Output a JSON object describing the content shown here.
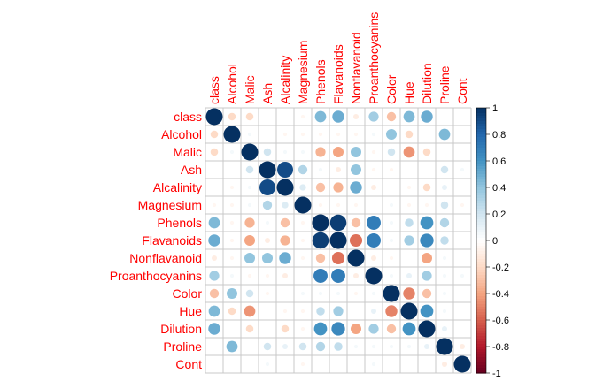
{
  "chart_data": {
    "type": "heatmap",
    "variables": [
      "class",
      "Alcohol",
      "Malic",
      "Ash",
      "Alcalinity",
      "Magnesium",
      "Phenols",
      "Flavanoids",
      "Nonflavanoid",
      "Proanthocyanins",
      "Color",
      "Hue",
      "Dilution",
      "Proline",
      "Cont"
    ],
    "matrix": [
      [
        1.0,
        -0.2,
        -0.2,
        0.0,
        0.0,
        -0.05,
        0.45,
        0.5,
        -0.1,
        0.35,
        -0.3,
        0.45,
        0.5,
        0.0,
        0.0
      ],
      [
        -0.2,
        1.0,
        0.05,
        0.0,
        -0.05,
        -0.05,
        -0.05,
        -0.05,
        -0.05,
        0.05,
        0.4,
        -0.2,
        0.0,
        0.45,
        0.0
      ],
      [
        -0.2,
        0.05,
        1.0,
        0.2,
        0.05,
        0.05,
        -0.35,
        -0.4,
        0.4,
        -0.05,
        0.2,
        -0.45,
        -0.2,
        0.0,
        0.0
      ],
      [
        0.0,
        0.0,
        0.2,
        1.0,
        0.9,
        0.3,
        0.05,
        -0.1,
        0.4,
        -0.05,
        -0.05,
        0.0,
        0.0,
        0.2,
        0.05
      ],
      [
        0.0,
        -0.05,
        0.05,
        0.9,
        1.0,
        0.15,
        -0.3,
        -0.35,
        0.5,
        -0.1,
        0.0,
        -0.05,
        -0.2,
        0.1,
        0.0
      ],
      [
        -0.05,
        -0.05,
        0.05,
        0.3,
        0.15,
        1.0,
        -0.05,
        -0.05,
        -0.05,
        0.0,
        0.05,
        -0.05,
        -0.05,
        0.2,
        -0.05
      ],
      [
        0.45,
        -0.05,
        -0.35,
        0.05,
        -0.3,
        -0.05,
        1.0,
        0.95,
        -0.3,
        0.7,
        0.05,
        0.25,
        0.6,
        0.3,
        0.0
      ],
      [
        0.5,
        -0.05,
        -0.4,
        -0.1,
        -0.35,
        -0.05,
        0.95,
        1.0,
        -0.55,
        0.7,
        0.05,
        0.35,
        0.65,
        0.25,
        0.0
      ],
      [
        -0.1,
        -0.05,
        0.4,
        0.4,
        0.5,
        -0.05,
        -0.3,
        -0.55,
        1.0,
        -0.1,
        -0.05,
        0.0,
        -0.4,
        0.05,
        0.0
      ],
      [
        0.35,
        0.05,
        -0.05,
        -0.05,
        -0.1,
        0.0,
        0.7,
        0.7,
        -0.1,
        1.0,
        0.05,
        0.1,
        0.35,
        0.05,
        0.05
      ],
      [
        -0.3,
        0.4,
        0.2,
        -0.05,
        0.0,
        0.05,
        0.05,
        0.05,
        -0.05,
        0.05,
        1.0,
        -0.5,
        -0.3,
        0.05,
        0.0
      ],
      [
        0.45,
        -0.2,
        -0.45,
        0.0,
        -0.05,
        -0.05,
        0.25,
        0.35,
        0.0,
        0.1,
        -0.5,
        1.0,
        0.6,
        0.05,
        0.0
      ],
      [
        0.5,
        0.0,
        -0.2,
        0.0,
        -0.2,
        -0.05,
        0.6,
        0.65,
        -0.4,
        0.35,
        -0.3,
        0.6,
        1.0,
        0.1,
        0.0
      ],
      [
        0.0,
        0.45,
        0.0,
        0.2,
        0.1,
        0.2,
        0.3,
        0.25,
        0.05,
        0.05,
        0.05,
        0.05,
        0.1,
        1.0,
        -0.1
      ],
      [
        0.0,
        0.0,
        0.0,
        0.05,
        0.0,
        -0.05,
        0.0,
        0.0,
        0.0,
        0.05,
        0.0,
        0.0,
        0.0,
        -0.1,
        1.0
      ]
    ],
    "value_range": [
      -1,
      1
    ],
    "colorbar_ticks": [
      "1",
      "0.8",
      "0.6",
      "0.4",
      "0.2",
      "0",
      "-0.2",
      "-0.4",
      "-0.6",
      "-0.8",
      "-1"
    ],
    "grid": true,
    "legend_position": "right",
    "colors": {
      "label": "#ff0000",
      "negative_end": "#67001f",
      "neutral": "#ffffff",
      "positive_end": "#053061",
      "grid": "#c8c8c8"
    }
  }
}
